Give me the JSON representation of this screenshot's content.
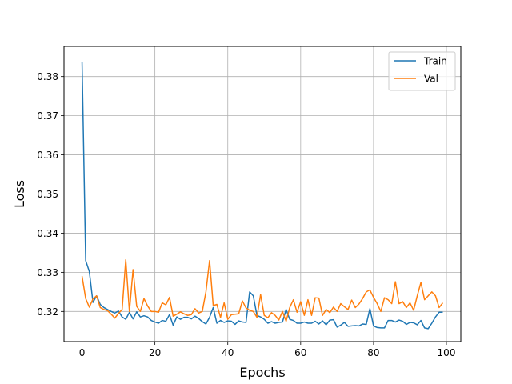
{
  "chart_data": {
    "type": "line",
    "title": "",
    "xlabel": "Epochs",
    "ylabel": "Loss",
    "xlim": [
      -4.95,
      103.95
    ],
    "ylim": [
      0.3123,
      0.3877
    ],
    "xticks": [
      0,
      20,
      40,
      60,
      80,
      100
    ],
    "yticks": [
      0.32,
      0.33,
      0.34,
      0.35,
      0.36,
      0.37,
      0.38
    ],
    "grid": true,
    "legend_position": "top-right",
    "x": [
      0,
      1,
      2,
      3,
      4,
      5,
      6,
      7,
      8,
      9,
      10,
      11,
      12,
      13,
      14,
      15,
      16,
      17,
      18,
      19,
      20,
      21,
      22,
      23,
      24,
      25,
      26,
      27,
      28,
      29,
      30,
      31,
      32,
      33,
      34,
      35,
      36,
      37,
      38,
      39,
      40,
      41,
      42,
      43,
      44,
      45,
      46,
      47,
      48,
      49,
      50,
      51,
      52,
      53,
      54,
      55,
      56,
      57,
      58,
      59,
      60,
      61,
      62,
      63,
      64,
      65,
      66,
      67,
      68,
      69,
      70,
      71,
      72,
      73,
      74,
      75,
      76,
      77,
      78,
      79,
      80,
      81,
      82,
      83,
      84,
      85,
      86,
      87,
      88,
      89,
      90,
      91,
      92,
      93,
      94,
      95,
      96,
      97,
      98,
      99
    ],
    "series": [
      {
        "name": "Train",
        "color": "#1f77b4",
        "values": [
          0.3837,
          0.333,
          0.3302,
          0.3223,
          0.324,
          0.3218,
          0.321,
          0.3205,
          0.32,
          0.3196,
          0.3201,
          0.3186,
          0.318,
          0.3198,
          0.3181,
          0.3199,
          0.3186,
          0.3189,
          0.3186,
          0.3177,
          0.3173,
          0.317,
          0.3177,
          0.3175,
          0.3192,
          0.3165,
          0.3186,
          0.318,
          0.3185,
          0.3185,
          0.3181,
          0.3188,
          0.3182,
          0.3174,
          0.3168,
          0.3185,
          0.321,
          0.317,
          0.3177,
          0.3172,
          0.3176,
          0.3175,
          0.3167,
          0.3176,
          0.3173,
          0.3172,
          0.325,
          0.324,
          0.319,
          0.3186,
          0.318,
          0.317,
          0.3174,
          0.317,
          0.3172,
          0.3173,
          0.3205,
          0.318,
          0.3177,
          0.317,
          0.317,
          0.3173,
          0.317,
          0.317,
          0.3175,
          0.3168,
          0.3176,
          0.3166,
          0.3178,
          0.3179,
          0.316,
          0.3165,
          0.3172,
          0.3162,
          0.3163,
          0.3164,
          0.3163,
          0.3168,
          0.3167,
          0.3207,
          0.3163,
          0.3159,
          0.3158,
          0.3158,
          0.3177,
          0.3177,
          0.3173,
          0.3178,
          0.3175,
          0.3167,
          0.3172,
          0.3171,
          0.3166,
          0.3177,
          0.3158,
          0.3156,
          0.317,
          0.3186,
          0.3198,
          0.3198
        ]
      },
      {
        "name": "Val",
        "color": "#ff7f0e",
        "values": [
          0.329,
          0.3233,
          0.3211,
          0.3232,
          0.324,
          0.321,
          0.3205,
          0.3202,
          0.3193,
          0.3183,
          0.3195,
          0.3205,
          0.3332,
          0.32,
          0.3307,
          0.3213,
          0.32,
          0.3233,
          0.3214,
          0.32,
          0.32,
          0.3198,
          0.3222,
          0.3217,
          0.3236,
          0.3188,
          0.3193,
          0.3199,
          0.3194,
          0.319,
          0.3192,
          0.3207,
          0.3196,
          0.32,
          0.325,
          0.333,
          0.3215,
          0.3218,
          0.3185,
          0.3222,
          0.318,
          0.3192,
          0.3193,
          0.3194,
          0.3227,
          0.3209,
          0.3203,
          0.32,
          0.3185,
          0.3243,
          0.319,
          0.3184,
          0.3197,
          0.319,
          0.3178,
          0.32,
          0.3175,
          0.321,
          0.323,
          0.3198,
          0.3225,
          0.319,
          0.323,
          0.319,
          0.3235,
          0.3234,
          0.319,
          0.3205,
          0.3197,
          0.3211,
          0.32,
          0.322,
          0.3212,
          0.3205,
          0.3229,
          0.321,
          0.3219,
          0.3233,
          0.325,
          0.3255,
          0.3236,
          0.322,
          0.32,
          0.3235,
          0.323,
          0.322,
          0.3276,
          0.322,
          0.3225,
          0.321,
          0.3222,
          0.3203,
          0.324,
          0.3274,
          0.323,
          0.324,
          0.325,
          0.324,
          0.321,
          0.3222
        ]
      }
    ]
  }
}
